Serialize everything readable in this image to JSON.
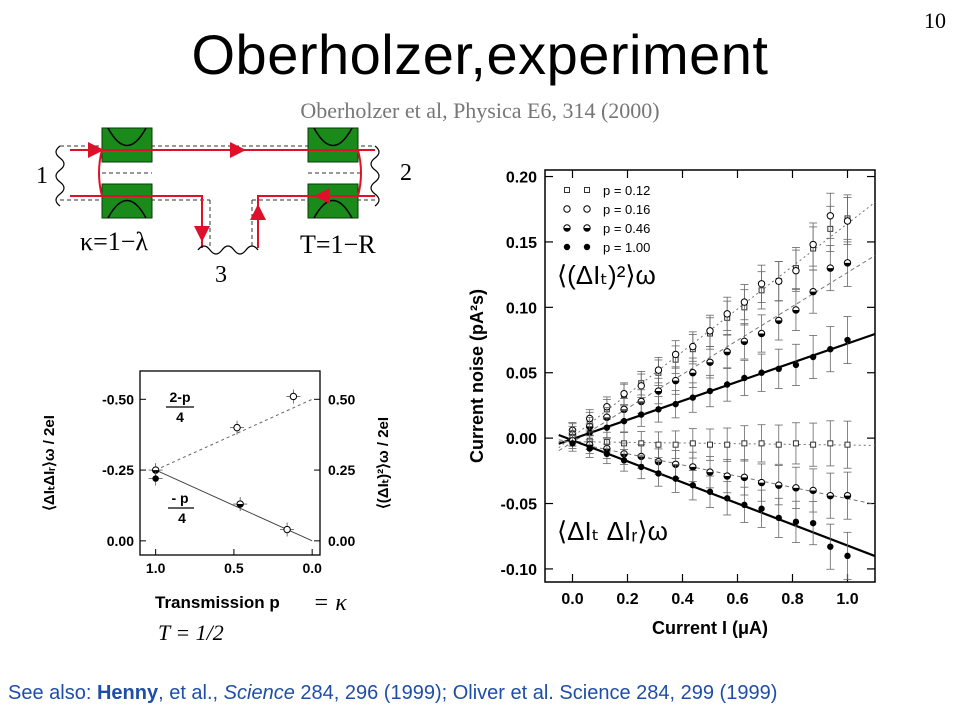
{
  "slide_number": "10",
  "title": "Oberholzer,experiment",
  "subtitle": "Oberholzer et al, Physica E6, 314 (2000)",
  "diagram": {
    "terminal_1": "1",
    "terminal_2": "2",
    "terminal_3": "3",
    "kappa_label": "κ=1−λ",
    "t_label": "T=1−R"
  },
  "footer": {
    "prefix": "See also: ",
    "author1": "Henny",
    "mid1": ", et al., ",
    "journal1": "Science",
    "ref1": " 284, 296 (1999); Oliver et al. Science 284, 299 (1999)"
  },
  "left_chart": {
    "xlabel": "Transmission p",
    "xlabel_extra": "= κ",
    "note": "T = 1/2",
    "ylabel_left": "⟨ΔIₜΔIᵣ⟩ω / 2eI",
    "ylabel_right": "⟨(ΔIₜ)²⟩ω / 2eI",
    "x_ticks": [
      "1.0",
      "0.5",
      "0.0"
    ],
    "left_ticks": [
      "-0.50",
      "-0.25",
      "0.00"
    ],
    "right_ticks": [
      "0.50",
      "0.25",
      "0.00"
    ],
    "annot_upper_num": "2-p",
    "annot_upper_den": "4",
    "annot_lower_num": "- p",
    "annot_lower_den": "4"
  },
  "chart_data": [
    {
      "type": "scatter",
      "xlabel": "Current I (μA)",
      "ylabel": "Current noise (pA²s)",
      "xlim": [
        -0.1,
        1.1
      ],
      "ylim": [
        -0.11,
        0.205
      ],
      "x_ticks": [
        "0.0",
        "0.2",
        "0.4",
        "0.6",
        "0.8",
        "1.0"
      ],
      "y_ticks": [
        "0.20",
        "0.15",
        "0.10",
        "0.05",
        "0.00",
        "-0.05",
        "-0.10"
      ],
      "legend_position": "top-left",
      "annotations": [
        "⟨(ΔIₜ)²⟩ω",
        "⟨ΔIₜ ΔIᵣ⟩ω"
      ],
      "x": [
        0.0,
        0.0625,
        0.125,
        0.1875,
        0.25,
        0.3125,
        0.375,
        0.4375,
        0.5,
        0.5625,
        0.625,
        0.6875,
        0.75,
        0.8125,
        0.875,
        0.9375,
        1.0
      ],
      "series": [
        {
          "name": "p = 0.12",
          "marker": "open-square-small",
          "group": "auto",
          "values": [
            0.005,
            0.013,
            0.022,
            0.033,
            0.042,
            0.05,
            0.06,
            0.068,
            0.08,
            0.092,
            0.1,
            0.113,
            0.12,
            0.13,
            0.145,
            0.16,
            0.168
          ]
        },
        {
          "name": "p = 0.16",
          "marker": "open-circle",
          "group": "auto",
          "values": [
            0.006,
            0.015,
            0.024,
            0.034,
            0.04,
            0.052,
            0.064,
            0.07,
            0.082,
            0.095,
            0.104,
            0.118,
            0.12,
            0.128,
            0.148,
            0.17,
            0.166
          ]
        },
        {
          "name": "p = 0.46",
          "marker": "half-circle",
          "group": "auto",
          "values": [
            0.003,
            0.009,
            0.016,
            0.022,
            0.028,
            0.036,
            0.044,
            0.05,
            0.058,
            0.066,
            0.074,
            0.08,
            0.09,
            0.098,
            0.112,
            0.13,
            0.134
          ]
        },
        {
          "name": "p = 1.00",
          "marker": "filled-circle",
          "group": "auto",
          "values": [
            0.0,
            0.004,
            0.008,
            0.013,
            0.018,
            0.022,
            0.026,
            0.031,
            0.036,
            0.041,
            0.046,
            0.05,
            0.053,
            0.056,
            0.062,
            0.068,
            0.075
          ]
        },
        {
          "name": "p = 0.12 cross",
          "marker": "open-square-small",
          "group": "cross",
          "values": [
            0.0,
            -0.002,
            -0.003,
            -0.004,
            -0.004,
            -0.005,
            -0.005,
            -0.004,
            -0.005,
            -0.005,
            -0.004,
            -0.004,
            -0.005,
            -0.004,
            -0.005,
            -0.004,
            -0.005
          ]
        },
        {
          "name": "p = 0.46 cross",
          "marker": "half-circle",
          "group": "cross",
          "values": [
            -0.002,
            -0.005,
            -0.008,
            -0.012,
            -0.014,
            -0.018,
            -0.02,
            -0.022,
            -0.026,
            -0.029,
            -0.03,
            -0.034,
            -0.036,
            -0.038,
            -0.04,
            -0.044,
            -0.044
          ]
        },
        {
          "name": "p = 1.00 cross",
          "marker": "filled-circle",
          "group": "cross",
          "values": [
            -0.004,
            -0.008,
            -0.012,
            -0.017,
            -0.022,
            -0.027,
            -0.031,
            -0.036,
            -0.041,
            -0.046,
            -0.051,
            -0.054,
            -0.061,
            -0.064,
            -0.065,
            -0.083,
            -0.09
          ]
        }
      ]
    },
    {
      "type": "scatter",
      "xlabel": "Transmission p",
      "xlim": [
        1.1,
        -0.05
      ],
      "ylim": [
        0.05,
        -0.6
      ],
      "points": [
        {
          "x": 1.0,
          "y": -0.25,
          "marker": "half-circle"
        },
        {
          "x": 1.0,
          "y": -0.22,
          "marker": "filled-circle"
        },
        {
          "x": 0.48,
          "y": -0.4,
          "marker": "open-circle"
        },
        {
          "x": 0.46,
          "y": -0.13,
          "marker": "half-circle"
        },
        {
          "x": 0.16,
          "y": -0.04,
          "marker": "open-circle"
        },
        {
          "x": 0.12,
          "y": -0.51,
          "marker": "open-circle"
        }
      ]
    }
  ]
}
